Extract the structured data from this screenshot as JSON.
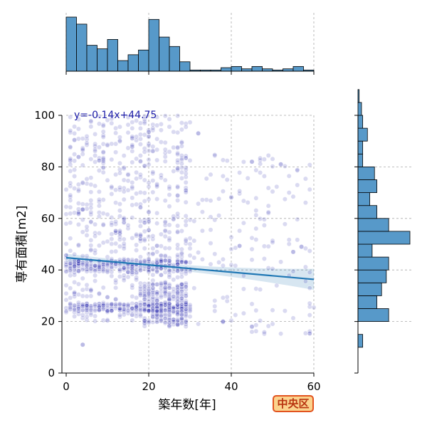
{
  "chart_data": {
    "type": "scatter",
    "title": "",
    "xlabel": "築年数[年]",
    "ylabel": "専有面積[m2]",
    "xlim": [
      0,
      60
    ],
    "ylim": [
      0,
      100
    ],
    "x_ticks": [
      "0",
      "20",
      "40",
      "60"
    ],
    "y_ticks": [
      "0",
      "20",
      "40",
      "60",
      "80",
      "100"
    ],
    "grid": true,
    "regression": {
      "equation_label": "y=-0.14x+44.75",
      "slope": -0.14,
      "intercept": 44.75,
      "x_range": [
        0,
        60
      ],
      "ci_halfwidth_edges": [
        1.0,
        3.2
      ],
      "color": "#1f77b4"
    },
    "scatter_color": "#1a1aa8",
    "hist_color": "#5799c9",
    "marginal_x_hist": {
      "bin_width": 2.5,
      "bin_start": 0,
      "counts": [
        92,
        80,
        44,
        38,
        54,
        18,
        28,
        36,
        88,
        58,
        42,
        16,
        2,
        2,
        2,
        6,
        8,
        4,
        8,
        4,
        2,
        4,
        8,
        2
      ]
    },
    "marginal_y_hist": {
      "bin_width": 5,
      "bin_start": 10,
      "counts": [
        4,
        0,
        26,
        16,
        20,
        24,
        26,
        12,
        44,
        26,
        16,
        10,
        16,
        14,
        4,
        4,
        8,
        4,
        3,
        1,
        0,
        0,
        0,
        0,
        0
      ]
    },
    "dense_regions": [
      {
        "x": [
          0,
          30
        ],
        "y": [
          20,
          100
        ],
        "weight": 0.45
      },
      {
        "x": [
          0,
          30
        ],
        "y": [
          24,
          27
        ],
        "weight": 0.14
      },
      {
        "x": [
          0,
          30
        ],
        "y": [
          39,
          44
        ],
        "weight": 0.16
      },
      {
        "x": [
          18,
          29
        ],
        "y": [
          18,
          35
        ],
        "weight": 0.15
      },
      {
        "x": [
          30,
          60
        ],
        "y": [
          15,
          85
        ],
        "weight": 0.1
      }
    ]
  },
  "badge": {
    "label": "中央区"
  }
}
